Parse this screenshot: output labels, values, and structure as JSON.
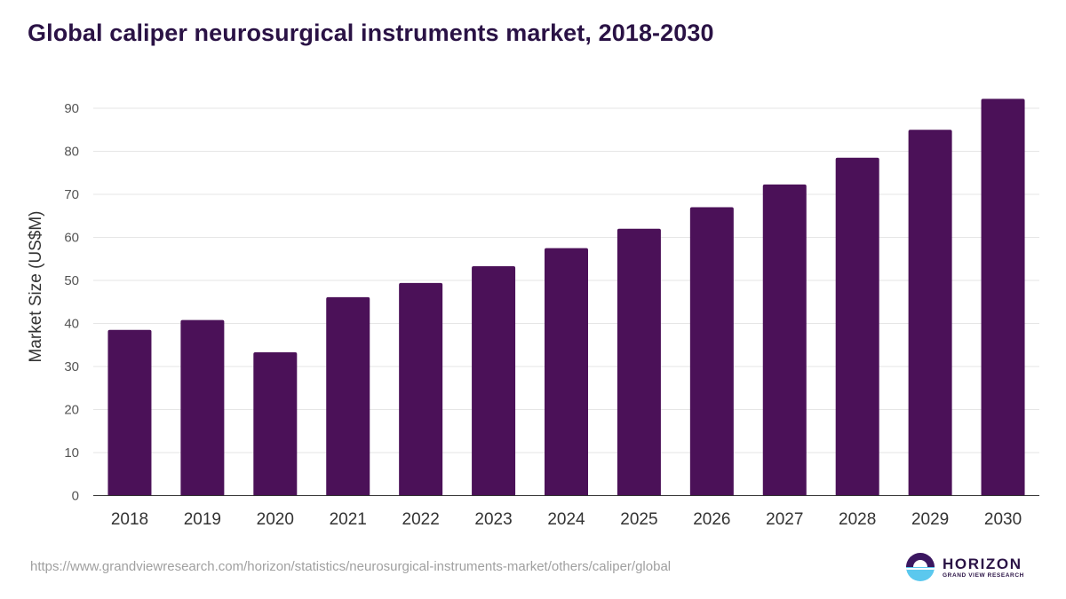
{
  "colors": {
    "bar": "#4b1158",
    "title": "#2a1245",
    "grid": "#e6e6e6",
    "axis": "#333333",
    "logo_top": "#3b1760",
    "logo_bottom": "#5bc8ee"
  },
  "chart_data": {
    "type": "bar",
    "title": "Global caliper neurosurgical instruments market, 2018-2030",
    "xlabel": "",
    "ylabel": "Market Size (US$M)",
    "categories": [
      "2018",
      "2019",
      "2020",
      "2021",
      "2022",
      "2023",
      "2024",
      "2025",
      "2026",
      "2027",
      "2028",
      "2029",
      "2030"
    ],
    "values": [
      38.5,
      40.8,
      33.3,
      46.1,
      49.4,
      53.3,
      57.5,
      62.0,
      67.0,
      72.3,
      78.5,
      85.0,
      92.2
    ],
    "ylim": [
      0,
      90
    ],
    "yticks": [
      "0",
      "10",
      "20",
      "30",
      "40",
      "50",
      "60",
      "70",
      "80",
      "90"
    ],
    "grid": true,
    "legend": "none"
  },
  "footer": {
    "source_url": "https://www.grandviewresearch.com/horizon/statistics/neurosurgical-instruments-market/others/caliper/global",
    "brand_name": "HORIZON",
    "brand_sub": "GRAND VIEW RESEARCH"
  }
}
